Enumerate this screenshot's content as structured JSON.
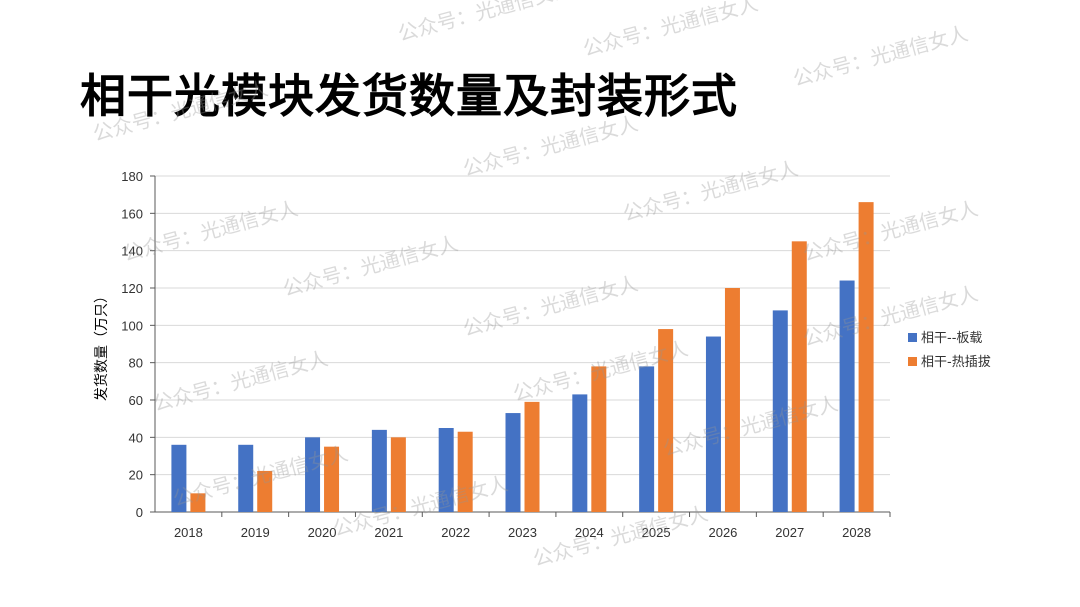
{
  "title": "相干光模块发货数量及封装形式",
  "watermark": "公众号：光通信女人",
  "colors": {
    "series1": "#4472C4",
    "series2": "#ED7D31",
    "grid": "#d9d9d9",
    "axis": "#595959"
  },
  "chart_data": {
    "type": "bar",
    "title": "相干光模块发货数量及封装形式",
    "xlabel": "",
    "ylabel": "发货数量（万只）",
    "ylim": [
      0,
      180
    ],
    "yticks": [
      "0",
      "20",
      "40",
      "60",
      "80",
      "100",
      "120",
      "140",
      "160",
      "180"
    ],
    "grid": true,
    "legend_position": "right",
    "categories": [
      "2018",
      "2019",
      "2020",
      "2021",
      "2022",
      "2023",
      "2024",
      "2025",
      "2026",
      "2027",
      "2028"
    ],
    "series": [
      {
        "name": "相干--板载",
        "values": [
          36,
          36,
          40,
          44,
          45,
          53,
          63,
          78,
          94,
          108,
          124
        ]
      },
      {
        "name": "相干-热插拔",
        "values": [
          10,
          22,
          35,
          40,
          43,
          59,
          78,
          98,
          120,
          145,
          166
        ]
      }
    ]
  }
}
